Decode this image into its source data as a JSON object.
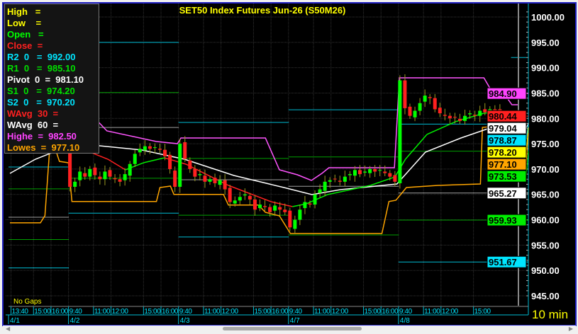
{
  "title": "SET50 Index Futures Jun-26 (S50M26)",
  "gap_mode": "No Gaps",
  "interval": "10 min",
  "legend": [
    {
      "label": "High   =",
      "color": "#ffff00"
    },
    {
      "label": "Low    =",
      "color": "#ffff00"
    },
    {
      "label": "Open   =",
      "color": "#00ff00"
    },
    {
      "label": "Close  =",
      "color": "#ff2020"
    },
    {
      "label": "R2  0   =  992.00",
      "color": "#00e5ff"
    },
    {
      "label": "R1  0   =  985.10",
      "color": "#00e000"
    },
    {
      "label": "Pivot  0  =  981.10",
      "color": "#ffffff"
    },
    {
      "label": "S1  0   =  974.20",
      "color": "#00e000"
    },
    {
      "label": "S2  0   =  970.20",
      "color": "#00e5ff"
    },
    {
      "label": "WAvg  30  =",
      "color": "#ff2020"
    },
    {
      "label": "WAvg  60  =",
      "color": "#ffffff"
    },
    {
      "label": "Highe  =  982.50",
      "color": "#ff44ff"
    },
    {
      "label": "Lowes  =  977.10",
      "color": "#ffa500"
    }
  ],
  "colors": {
    "up": "#00ff00",
    "down": "#ff2020",
    "wick": "#9a9a20",
    "wavg30_down": "#ff2020",
    "wavg30_up": "#00ee00",
    "wavg60": "#ffffff",
    "highest": "#ff55ff",
    "lowest": "#ffa500",
    "r2": "#00bcd4",
    "r1": "#00a000",
    "pivot": "#a0a0a0",
    "s1": "#00a000",
    "s2": "#00bcd4",
    "axis_text": "#ffffff",
    "title": "#ffff00",
    "time_axis": "#00bcd4"
  },
  "chart_data": {
    "type": "candlestick",
    "title": "SET50 Index Futures Jun-26 (S50M26)",
    "ylim": [
      944,
      1002
    ],
    "y_ticks": [
      945,
      950,
      955,
      960,
      965,
      970,
      975,
      980,
      985,
      990,
      995,
      1000
    ],
    "y_tick_labels": [
      "945.00",
      "950.00",
      "955.00",
      "960.00",
      "965.00",
      "970.00",
      "975.00",
      "980.00",
      "985.00",
      "990.00",
      "995.00",
      "1000.00"
    ],
    "grid": true,
    "time_labels": [
      {
        "bar": 0.5,
        "label": "13:40"
      },
      {
        "bar": 5,
        "label": "15:00"
      },
      {
        "bar": 8.5,
        "label": "16:00"
      },
      {
        "bar": 12,
        "label": "9:40"
      },
      {
        "bar": 17,
        "label": "11:00"
      },
      {
        "bar": 20.5,
        "label": "12:00"
      },
      {
        "bar": 27,
        "label": "15:00"
      },
      {
        "bar": 30.5,
        "label": "16:00"
      },
      {
        "bar": 34,
        "label": "9:40"
      },
      {
        "bar": 39,
        "label": "11:00"
      },
      {
        "bar": 42.5,
        "label": "12:00"
      },
      {
        "bar": 49,
        "label": "15:00"
      },
      {
        "bar": 52.5,
        "label": "16:00"
      },
      {
        "bar": 56,
        "label": "9:40"
      },
      {
        "bar": 61,
        "label": "11:00"
      },
      {
        "bar": 64.5,
        "label": "12:00"
      },
      {
        "bar": 71,
        "label": "15:00"
      },
      {
        "bar": 74.5,
        "label": "16:00"
      },
      {
        "bar": 78,
        "label": "9:40"
      },
      {
        "bar": 83,
        "label": "11:00"
      },
      {
        "bar": 86.5,
        "label": "12:00"
      },
      {
        "bar": 93,
        "label": "15:00"
      }
    ],
    "date_labels": [
      {
        "bar": 0,
        "label": "4/1"
      },
      {
        "bar": 12,
        "label": "4/2"
      },
      {
        "bar": 34,
        "label": "4/3"
      },
      {
        "bar": 56,
        "label": "4/7"
      },
      {
        "bar": 78,
        "label": "4/8"
      }
    ],
    "closes": [
      976,
      976.5,
      975.8,
      976.2,
      977,
      976.5,
      976,
      975.5,
      976,
      976.8,
      975.5,
      975,
      966.5,
      967.5,
      969.5,
      968.5,
      970,
      968.8,
      968,
      969.5,
      968.5,
      968,
      967.5,
      969,
      971,
      973,
      974,
      974.5,
      974,
      974.3,
      973.8,
      972.5,
      970,
      966.5,
      975,
      972,
      970,
      968.5,
      969,
      967.5,
      968,
      967.2,
      967.8,
      966,
      963.5,
      963.8,
      964.5,
      965,
      964,
      962,
      963,
      962.5,
      961.5,
      962.8,
      962,
      961.5,
      958.5,
      960,
      962,
      963.5,
      963,
      965,
      966,
      967.5,
      967.8,
      968,
      967.5,
      968.5,
      969,
      969.8,
      969,
      969.5,
      970,
      969.5,
      969.8,
      969.2,
      968.5,
      967.5,
      987.5,
      982,
      980.5,
      981.5,
      983,
      984.5,
      984,
      981.8,
      981,
      980.5,
      980,
      980.2,
      979.5,
      980.5,
      981,
      980.5,
      981.5,
      981.2,
      981.8,
      981.5,
      979,
      978
    ],
    "wavg30": [
      [
        12.5,
        974.74
      ],
      [
        19.6,
        971.94
      ],
      [
        23.1,
        969.85
      ],
      [
        26.7,
        971.24
      ],
      [
        30.9,
        972.22
      ],
      [
        35.2,
        970.97
      ],
      [
        43.7,
        966.78
      ],
      [
        52.2,
        963.57
      ],
      [
        56.5,
        962.59
      ],
      [
        59.3,
        963.15
      ],
      [
        63.5,
        964.96
      ],
      [
        72.1,
        966.78
      ],
      [
        77,
        968.45
      ],
      [
        79.1,
        971.94
      ],
      [
        83.4,
        976.83
      ],
      [
        89.1,
        979.34
      ],
      [
        94.8,
        981.02
      ],
      [
        98.3,
        981.3
      ],
      [
        99.7,
        980.6
      ]
    ],
    "wavg60": [
      [
        0,
        969.15
      ],
      [
        5.1,
        971.94
      ],
      [
        9.4,
        973.62
      ],
      [
        11.5,
        974.04
      ],
      [
        16.5,
        974.74
      ],
      [
        26.4,
        973.76
      ],
      [
        34.9,
        971.94
      ],
      [
        44.8,
        968.73
      ],
      [
        54.8,
        966.36
      ],
      [
        60.4,
        964.96
      ],
      [
        66.1,
        965.94
      ],
      [
        77.4,
        967.06
      ],
      [
        83.1,
        973.34
      ],
      [
        90.2,
        976.13
      ],
      [
        97.2,
        978.5
      ],
      [
        99.3,
        978.92
      ]
    ],
    "highest": [
      [
        16.3,
        980.74
      ],
      [
        19.4,
        977.53
      ],
      [
        29.3,
        975.43
      ],
      [
        33.5,
        975.01
      ],
      [
        34.2,
        976.13
      ],
      [
        51.1,
        976.13
      ],
      [
        53.9,
        969.85
      ],
      [
        57.5,
        968.87
      ],
      [
        60.3,
        967.76
      ],
      [
        62.4,
        969.15
      ],
      [
        63.8,
        970.27
      ],
      [
        76.9,
        970.27
      ],
      [
        77.9,
        988.0
      ],
      [
        94.8,
        988.0
      ],
      [
        96.2,
        985.62
      ],
      [
        98.3,
        985.62
      ],
      [
        100.4,
        982.69
      ],
      [
        101.8,
        982.69
      ]
    ],
    "lowest": [
      [
        0,
        959.4
      ],
      [
        6.1,
        959.4
      ],
      [
        7,
        960.8
      ],
      [
        7.9,
        973.3
      ],
      [
        9.3,
        973.3
      ],
      [
        9.9,
        971.52
      ],
      [
        11.7,
        971.24
      ],
      [
        12.4,
        963.6
      ],
      [
        29.3,
        963.6
      ],
      [
        30,
        966.36
      ],
      [
        32.1,
        966.64
      ],
      [
        32.8,
        965
      ],
      [
        42.7,
        965
      ],
      [
        43.7,
        962.9
      ],
      [
        49.7,
        962.9
      ],
      [
        51.1,
        961.47
      ],
      [
        53.9,
        960.78
      ],
      [
        56.1,
        957.29
      ],
      [
        74.4,
        957.29
      ],
      [
        75.8,
        963.6
      ],
      [
        77.2,
        963.85
      ],
      [
        79.3,
        966.36
      ],
      [
        85.6,
        966.78
      ],
      [
        94.1,
        967.06
      ],
      [
        94.5,
        978.22
      ],
      [
        97.6,
        978.5
      ],
      [
        98.6,
        977.11
      ],
      [
        101.8,
        977.11
      ]
    ],
    "pivots": [
      {
        "from": 0,
        "to": 11.5,
        "r2": 970.4,
        "r1": 966.1,
        "p": 960.5,
        "s1": 956.1,
        "s2": 950.5
      },
      {
        "from": 12,
        "to": 33.5,
        "r2": 995.0,
        "r1": 985.1,
        "p": 978.2,
        "s1": 968.2,
        "s2": 961.3
      },
      {
        "from": 34,
        "to": 55.5,
        "r2": 979.2,
        "r1": 972.1,
        "p": 967.9,
        "s1": 960.9,
        "s2": 956.6
      },
      {
        "from": 56,
        "to": 77.5,
        "r2": 981.7,
        "r1": 972.4,
        "p": 966.6,
        "s1": 957.0,
        "s2": null
      },
      {
        "from": 78,
        "to": 99.5,
        "r2": 978.87,
        "r1": 973.53,
        "p": 965.27,
        "s1": 959.93,
        "s2": 951.67
      },
      {
        "from": 100.5,
        "to": 103,
        "r2": 992.0,
        "r1": 985.1,
        "p": 981.1,
        "s1": 974.2,
        "s2": 970.2
      }
    ],
    "price_markers": [
      {
        "value": 984.9,
        "label": "984.90",
        "bg": "#ff44ff"
      },
      {
        "value": 980.44,
        "label": "980.44",
        "bg": "#ff2020"
      },
      {
        "value": 979.04,
        "label": "979.04",
        "bg": "#ffffff"
      },
      {
        "value": 978.87,
        "label": "978.87",
        "bg": "#00e5ff"
      },
      {
        "value": 978.2,
        "label": "978.20",
        "bg": "#ffff00"
      },
      {
        "value": 977.1,
        "label": "977.10",
        "bg": "#ffa500"
      },
      {
        "value": 973.53,
        "label": "973.53",
        "bg": "#00ee00"
      },
      {
        "value": 965.27,
        "label": "965.27",
        "bg": "#ffffff"
      },
      {
        "value": 959.93,
        "label": "959.93",
        "bg": "#00ee00"
      },
      {
        "value": 951.67,
        "label": "951.67",
        "bg": "#00e5ff"
      }
    ]
  }
}
